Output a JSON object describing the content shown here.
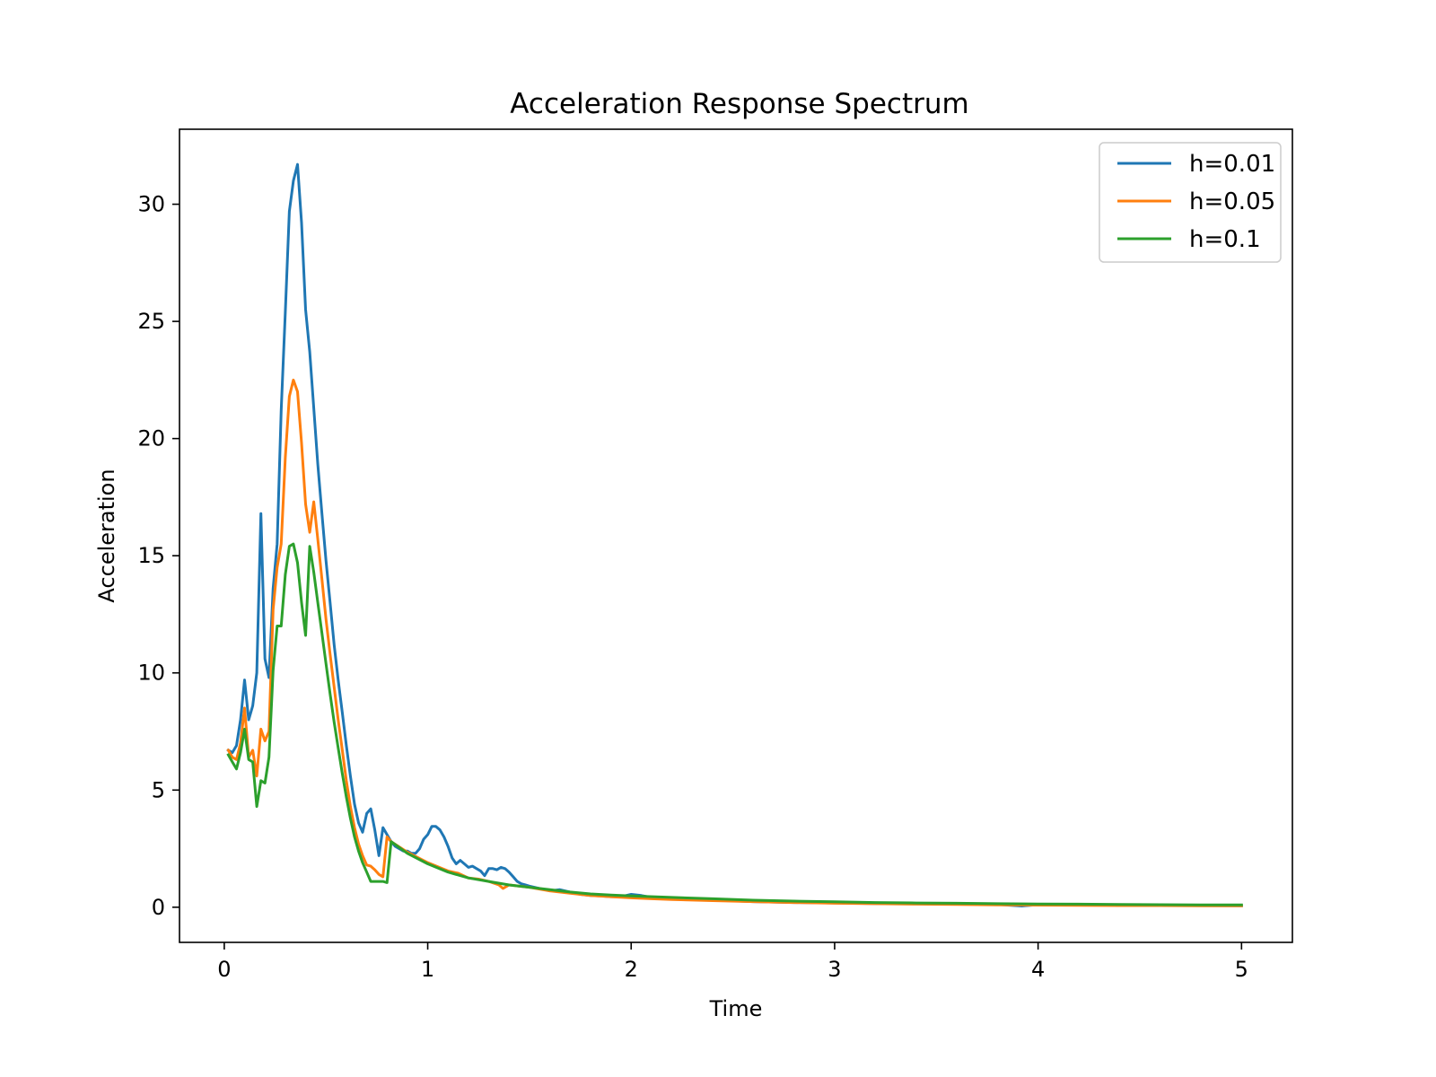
{
  "chart_data": {
    "type": "line",
    "title": "Acceleration Response Spectrum",
    "xlabel": "Time",
    "ylabel": "Acceleration",
    "xlim": [
      -0.22,
      5.25
    ],
    "ylim": [
      -1.5,
      33.2
    ],
    "xticks": [
      0,
      1,
      2,
      3,
      4,
      5
    ],
    "yticks": [
      0,
      5,
      10,
      15,
      20,
      25,
      30
    ],
    "grid": false,
    "legend_position": "top-right",
    "series": [
      {
        "name": "h=0.01",
        "color": "#1f77b4",
        "x": [
          0.02,
          0.04,
          0.06,
          0.08,
          0.1,
          0.12,
          0.14,
          0.16,
          0.18,
          0.2,
          0.22,
          0.24,
          0.26,
          0.28,
          0.3,
          0.32,
          0.34,
          0.36,
          0.38,
          0.4,
          0.42,
          0.44,
          0.46,
          0.48,
          0.5,
          0.52,
          0.54,
          0.56,
          0.58,
          0.6,
          0.62,
          0.64,
          0.66,
          0.68,
          0.7,
          0.72,
          0.74,
          0.76,
          0.78,
          0.8,
          0.82,
          0.84,
          0.86,
          0.88,
          0.9,
          0.92,
          0.94,
          0.96,
          0.98,
          1.0,
          1.02,
          1.04,
          1.06,
          1.08,
          1.1,
          1.12,
          1.14,
          1.16,
          1.18,
          1.2,
          1.22,
          1.24,
          1.26,
          1.28,
          1.3,
          1.32,
          1.34,
          1.36,
          1.38,
          1.4,
          1.42,
          1.44,
          1.46,
          1.48,
          1.5,
          1.55,
          1.6,
          1.65,
          1.7,
          1.75,
          1.8,
          1.85,
          1.9,
          1.95,
          2.0,
          2.05,
          2.1,
          2.2,
          2.3,
          2.4,
          2.5,
          2.6,
          2.8,
          3.0,
          3.2,
          3.4,
          3.6,
          3.8,
          3.92,
          4.0,
          4.2,
          4.4,
          4.6,
          4.8,
          5.0
        ],
        "y": [
          6.7,
          6.6,
          6.9,
          8.0,
          9.7,
          8.0,
          8.6,
          10.0,
          16.8,
          10.6,
          9.8,
          13.6,
          15.5,
          21.2,
          25.4,
          29.7,
          31.0,
          31.7,
          29.2,
          25.5,
          23.7,
          21.3,
          18.9,
          16.8,
          14.8,
          13.0,
          11.2,
          9.7,
          8.3,
          6.9,
          5.6,
          4.4,
          3.6,
          3.2,
          4.0,
          4.2,
          3.3,
          2.2,
          3.4,
          3.1,
          2.8,
          2.6,
          2.5,
          2.4,
          2.4,
          2.3,
          2.3,
          2.5,
          2.9,
          3.1,
          3.45,
          3.45,
          3.3,
          3.0,
          2.6,
          2.1,
          1.85,
          2.0,
          1.85,
          1.7,
          1.75,
          1.65,
          1.55,
          1.35,
          1.65,
          1.65,
          1.6,
          1.7,
          1.65,
          1.5,
          1.3,
          1.1,
          1.0,
          0.95,
          0.9,
          0.8,
          0.7,
          0.75,
          0.65,
          0.55,
          0.5,
          0.48,
          0.45,
          0.45,
          0.55,
          0.5,
          0.42,
          0.37,
          0.33,
          0.3,
          0.27,
          0.24,
          0.2,
          0.18,
          0.16,
          0.15,
          0.13,
          0.12,
          0.05,
          0.11,
          0.1,
          0.09,
          0.08,
          0.07,
          0.06
        ]
      },
      {
        "name": "h=0.05",
        "color": "#ff7f0e",
        "x": [
          0.02,
          0.04,
          0.06,
          0.08,
          0.1,
          0.12,
          0.14,
          0.16,
          0.18,
          0.2,
          0.22,
          0.24,
          0.26,
          0.28,
          0.3,
          0.32,
          0.34,
          0.36,
          0.38,
          0.4,
          0.42,
          0.44,
          0.46,
          0.48,
          0.5,
          0.52,
          0.54,
          0.56,
          0.58,
          0.6,
          0.62,
          0.64,
          0.66,
          0.68,
          0.7,
          0.72,
          0.74,
          0.76,
          0.78,
          0.8,
          0.82,
          0.9,
          1.0,
          1.1,
          1.15,
          1.2,
          1.25,
          1.3,
          1.35,
          1.37,
          1.4,
          1.5,
          1.6,
          1.7,
          1.8,
          1.9,
          2.0,
          2.1,
          2.2,
          2.4,
          2.6,
          2.8,
          3.0,
          3.2,
          3.4,
          3.6,
          3.8,
          4.0,
          4.2,
          4.4,
          4.6,
          4.8,
          5.0
        ],
        "y": [
          6.7,
          6.4,
          6.3,
          7.0,
          8.5,
          6.4,
          6.7,
          5.6,
          7.6,
          7.1,
          7.5,
          12.7,
          14.5,
          15.5,
          19.2,
          21.8,
          22.5,
          22.0,
          19.8,
          17.2,
          16.0,
          17.3,
          15.7,
          14.0,
          12.3,
          10.8,
          9.4,
          8.0,
          6.7,
          5.4,
          4.3,
          3.4,
          2.7,
          2.2,
          1.8,
          1.75,
          1.6,
          1.4,
          1.3,
          3.0,
          2.8,
          2.35,
          1.9,
          1.55,
          1.45,
          1.25,
          1.2,
          1.1,
          0.95,
          0.8,
          0.95,
          0.85,
          0.7,
          0.6,
          0.5,
          0.45,
          0.4,
          0.36,
          0.33,
          0.28,
          0.24,
          0.2,
          0.17,
          0.15,
          0.13,
          0.12,
          0.1,
          0.09,
          0.08,
          0.07,
          0.07,
          0.06,
          0.06
        ]
      },
      {
        "name": "h=0.1",
        "color": "#2ca02c",
        "x": [
          0.02,
          0.04,
          0.06,
          0.08,
          0.1,
          0.12,
          0.14,
          0.16,
          0.18,
          0.2,
          0.22,
          0.24,
          0.26,
          0.28,
          0.3,
          0.32,
          0.34,
          0.36,
          0.38,
          0.4,
          0.42,
          0.44,
          0.46,
          0.48,
          0.5,
          0.52,
          0.54,
          0.56,
          0.58,
          0.6,
          0.62,
          0.64,
          0.66,
          0.68,
          0.7,
          0.72,
          0.74,
          0.76,
          0.78,
          0.8,
          0.82,
          0.9,
          1.0,
          1.1,
          1.2,
          1.3,
          1.4,
          1.5,
          1.6,
          1.7,
          1.8,
          1.9,
          2.0,
          2.2,
          2.4,
          2.6,
          2.8,
          3.0,
          3.2,
          3.4,
          3.6,
          3.8,
          4.0,
          4.2,
          4.4,
          4.6,
          4.8,
          5.0
        ],
        "y": [
          6.5,
          6.2,
          5.9,
          6.6,
          7.6,
          6.3,
          6.2,
          4.3,
          5.4,
          5.3,
          6.4,
          10.1,
          12.0,
          12.0,
          14.2,
          15.4,
          15.5,
          14.7,
          13.0,
          11.6,
          15.4,
          14.3,
          13.0,
          11.7,
          10.4,
          9.1,
          7.9,
          6.8,
          5.7,
          4.7,
          3.8,
          3.0,
          2.4,
          1.9,
          1.5,
          1.1,
          1.1,
          1.1,
          1.1,
          1.05,
          2.8,
          2.3,
          1.85,
          1.5,
          1.25,
          1.1,
          0.95,
          0.85,
          0.75,
          0.65,
          0.57,
          0.52,
          0.48,
          0.42,
          0.36,
          0.3,
          0.26,
          0.23,
          0.2,
          0.18,
          0.17,
          0.15,
          0.14,
          0.13,
          0.12,
          0.11,
          0.1,
          0.1
        ]
      }
    ]
  }
}
